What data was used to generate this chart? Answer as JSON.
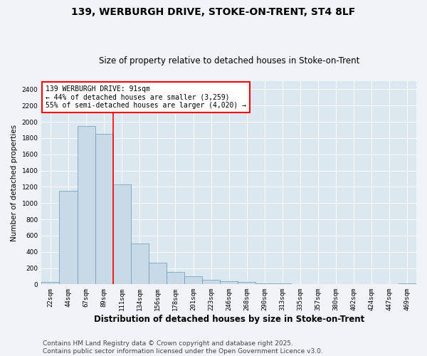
{
  "title_line1": "139, WERBURGH DRIVE, STOKE-ON-TRENT, ST4 8LF",
  "title_line2": "Size of property relative to detached houses in Stoke-on-Trent",
  "xlabel": "Distribution of detached houses by size in Stoke-on-Trent",
  "ylabel": "Number of detached properties",
  "categories": [
    "22sqm",
    "44sqm",
    "67sqm",
    "89sqm",
    "111sqm",
    "134sqm",
    "156sqm",
    "178sqm",
    "201sqm",
    "223sqm",
    "246sqm",
    "268sqm",
    "290sqm",
    "313sqm",
    "335sqm",
    "357sqm",
    "380sqm",
    "402sqm",
    "424sqm",
    "447sqm",
    "469sqm"
  ],
  "values": [
    25,
    1150,
    1950,
    1850,
    1230,
    500,
    270,
    150,
    100,
    55,
    40,
    30,
    10,
    10,
    5,
    5,
    5,
    0,
    0,
    0,
    15
  ],
  "bar_color": "#c9d9e8",
  "bar_edgecolor": "#6699bb",
  "bar_linewidth": 0.5,
  "red_line_index": 3.5,
  "annotation_text": "139 WERBURGH DRIVE: 91sqm\n← 44% of detached houses are smaller (3,259)\n55% of semi-detached houses are larger (4,020) →",
  "annotation_fontsize": 7,
  "ylim": [
    0,
    2500
  ],
  "yticks": [
    0,
    200,
    400,
    600,
    800,
    1000,
    1200,
    1400,
    1600,
    1800,
    2000,
    2200,
    2400
  ],
  "plot_bg_color": "#dce8f0",
  "fig_bg_color": "#f0f4f8",
  "grid_color": "#ffffff",
  "footer_line1": "Contains HM Land Registry data © Crown copyright and database right 2025.",
  "footer_line2": "Contains public sector information licensed under the Open Government Licence v3.0.",
  "title_fontsize": 10,
  "subtitle_fontsize": 8.5,
  "xlabel_fontsize": 8.5,
  "ylabel_fontsize": 7.5,
  "tick_fontsize": 6.5,
  "footer_fontsize": 6.5
}
